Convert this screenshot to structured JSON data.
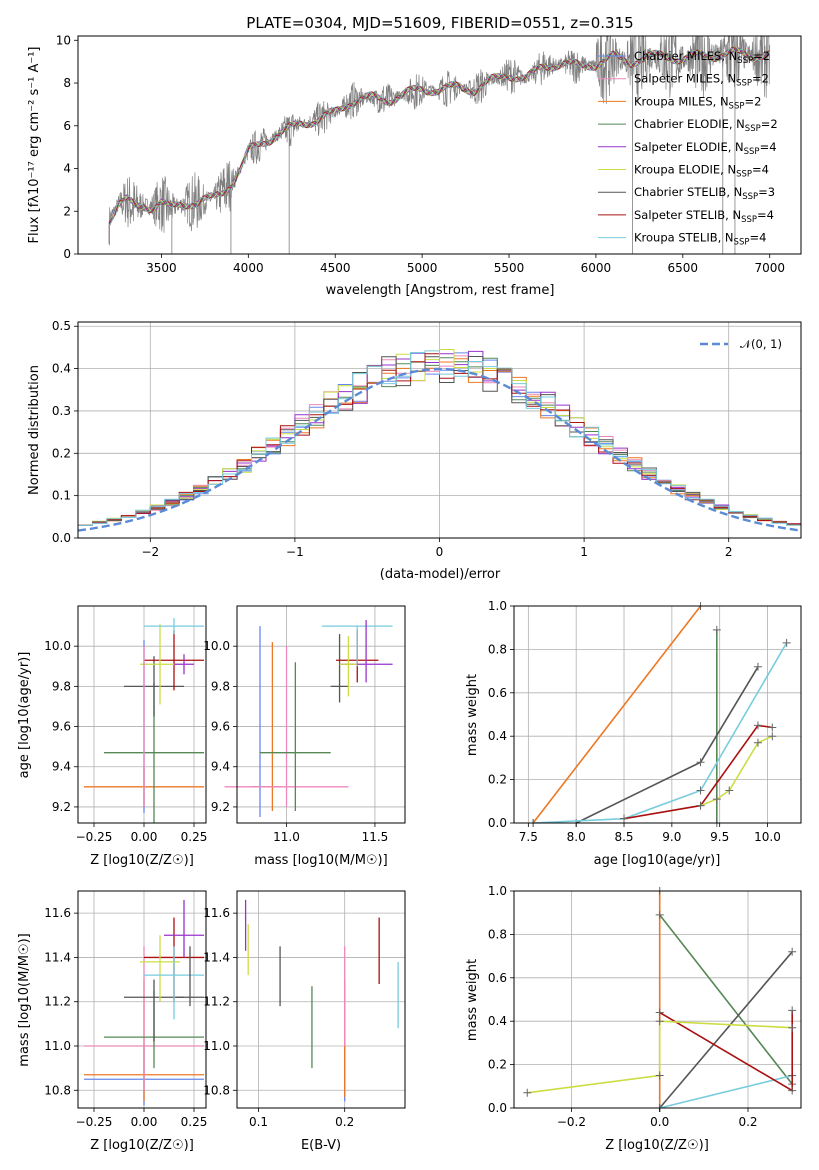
{
  "chart_data": [
    {
      "type": "line",
      "title": "PLATE=0304, MJD=51609, FIBERID=0551, z=0.315",
      "xlabel": "wavelength [Angstrom, rest frame]",
      "ylabel": "Flux [fλ10⁻¹⁷ erg cm⁻² s⁻¹ A⁻¹]",
      "xlim": [
        3020,
        7180
      ],
      "ylim": [
        0,
        10.2
      ],
      "xticks": [
        3500,
        4000,
        4500,
        5000,
        5500,
        6000,
        6500,
        7000
      ],
      "yticks": [
        0,
        2,
        4,
        6,
        8,
        10
      ],
      "data_color": "#7f7f7f",
      "spectrum": {
        "x": [
          3200,
          3250,
          3300,
          3350,
          3400,
          3450,
          3500,
          3550,
          3600,
          3650,
          3700,
          3750,
          3800,
          3850,
          3900,
          3950,
          4000,
          4100,
          4200,
          4300,
          4400,
          4500,
          4600,
          4700,
          4800,
          4900,
          5000,
          5100,
          5200,
          5300,
          5400,
          5500,
          5600,
          5700,
          5800,
          5900,
          6000,
          6100,
          6200,
          6300,
          6400,
          6500,
          6600,
          6700,
          6800,
          6900,
          7000
        ],
        "y": [
          1.6,
          2.3,
          2.5,
          2.2,
          2.3,
          2.2,
          2.4,
          2.1,
          2.3,
          2.4,
          2.4,
          2.5,
          2.6,
          2.9,
          3.3,
          3.9,
          4.8,
          5.3,
          5.7,
          6.1,
          6.3,
          6.6,
          7.2,
          7.3,
          7.2,
          7.5,
          7.7,
          7.7,
          7.8,
          7.7,
          8.1,
          8.4,
          8.2,
          8.8,
          8.9,
          8.8,
          8.9,
          9.2,
          9.0,
          9.2,
          9.3,
          9.1,
          9.3,
          9.3,
          9.4,
          9.3,
          9.3
        ]
      },
      "series": [
        {
          "name": "Chabrier MILES, N_SSP=2",
          "label": "Chabrier MILES, N",
          "sub": "SSP",
          "suffix": "=2",
          "color": "#6688ee"
        },
        {
          "name": "Salpeter MILES, N_SSP=2",
          "label": "Salpeter MILES, N",
          "sub": "SSP",
          "suffix": "=2",
          "color": "#ee88bb"
        },
        {
          "name": "Kroupa MILES, N_SSP=2",
          "label": "Kroupa MILES, N",
          "sub": "SSP",
          "suffix": "=2",
          "color": "#ee7722"
        },
        {
          "name": "Chabrier ELODIE, N_SSP=2",
          "label": "Chabrier ELODIE, N",
          "sub": "SSP",
          "suffix": "=2",
          "color": "#558855"
        },
        {
          "name": "Salpeter ELODIE, N_SSP=4",
          "label": "Salpeter ELODIE, N",
          "sub": "SSP",
          "suffix": "=4",
          "color": "#9933cc"
        },
        {
          "name": "Kroupa ELODIE, N_SSP=4",
          "label": "Kroupa ELODIE, N",
          "sub": "SSP",
          "suffix": "=4",
          "color": "#ccdd44"
        },
        {
          "name": "Chabrier STELIB, N_SSP=3",
          "label": "Chabrier STELIB, N",
          "sub": "SSP",
          "suffix": "=3",
          "color": "#555555"
        },
        {
          "name": "Salpeter STELIB, N_SSP=4",
          "label": "Salpeter STELIB, N",
          "sub": "SSP",
          "suffix": "=4",
          "color": "#aa1111"
        },
        {
          "name": "Kroupa STELIB, N_SSP=4",
          "label": "Kroupa STELIB, N",
          "sub": "SSP",
          "suffix": "=4",
          "color": "#77ccdd"
        }
      ],
      "legend": "top-right"
    },
    {
      "type": "histogram",
      "xlabel": "(data-model)/error",
      "ylabel": "Normed distribution",
      "xlim": [
        -2.5,
        2.5
      ],
      "ylim": [
        0,
        0.51
      ],
      "xticks": [
        -2,
        -1,
        0,
        1,
        2
      ],
      "yticks": [
        0.0,
        0.1,
        0.2,
        0.3,
        0.4,
        0.5
      ],
      "legend_label": "𝒩(0, 1)",
      "gaussian_color": "#5b8bd6",
      "grid": true
    },
    {
      "type": "errorbar",
      "xlabel": "Z [log10(Z/Z☉)]",
      "ylabel": "age [log10(age/yr)]",
      "xlim": [
        -0.33,
        0.31
      ],
      "ylim": [
        9.12,
        10.2
      ],
      "xticks": [
        -0.25,
        0.0,
        0.25
      ],
      "yticks": [
        9.2,
        9.4,
        9.6,
        9.8,
        10.0
      ],
      "points": [
        {
          "x": 0.0,
          "y": 9.3,
          "xerr": 0.3,
          "yerr": 0.1,
          "color": "#ee7722"
        },
        {
          "x": 0.05,
          "y": 9.47,
          "xerr": 0.25,
          "yerr": 0.35,
          "color": "#558855"
        },
        {
          "x": 0.05,
          "y": 9.8,
          "xerr": 0.15,
          "yerr": 0.15,
          "color": "#555555"
        },
        {
          "x": 0.15,
          "y": 9.93,
          "xerr": 0.15,
          "yerr": 0.15,
          "color": "#aa1111"
        },
        {
          "x": 0.08,
          "y": 9.91,
          "xerr": 0.1,
          "yerr": 0.2,
          "color": "#ccdd44"
        },
        {
          "x": 0.15,
          "y": 10.1,
          "xerr": 0.15,
          "yerr": 0.04,
          "color": "#77ccdd"
        },
        {
          "x": 0.2,
          "y": 9.91,
          "xerr": 0.05,
          "yerr": 0.05,
          "color": "#9933cc"
        }
      ]
    },
    {
      "type": "errorbar",
      "xlabel": "mass [log10(M/M☉)]",
      "xlim": [
        10.72,
        11.67
      ],
      "ylim": [
        9.12,
        10.2
      ],
      "xticks": [
        11.0,
        11.5
      ],
      "yticks": [
        9.2,
        9.4,
        9.6,
        9.8,
        10.0
      ]
    },
    {
      "type": "line",
      "xlabel": "age  [log10(age/yr)]",
      "ylabel": "mass weight",
      "xlim": [
        7.35,
        10.35
      ],
      "ylim": [
        0,
        1.0
      ],
      "xticks": [
        7.5,
        8.0,
        8.5,
        9.0,
        9.5,
        10.0
      ],
      "yticks": [
        0.0,
        0.2,
        0.4,
        0.6,
        0.8,
        1.0
      ],
      "series": [
        {
          "name": "Kroupa MILES",
          "color": "#ee7722",
          "x": [
            7.55,
            9.3
          ],
          "y": [
            0.0,
            1.0
          ]
        },
        {
          "name": "Chabrier ELODIE",
          "color": "#558855",
          "x": [
            9.47,
            9.47
          ],
          "y": [
            0.0,
            0.89
          ]
        },
        {
          "name": "Chabrier STELIB",
          "color": "#555555",
          "x": [
            8.0,
            9.3,
            9.9
          ],
          "y": [
            0.0,
            0.28,
            0.72
          ]
        },
        {
          "name": "Kroupa STELIB",
          "color": "#77ccdd",
          "x": [
            7.55,
            8.5,
            9.3,
            10.2
          ],
          "y": [
            0.0,
            0.02,
            0.15,
            0.83
          ]
        },
        {
          "name": "Salpeter STELIB",
          "color": "#aa1111",
          "x": [
            8.5,
            9.3,
            9.9,
            10.05
          ],
          "y": [
            0.02,
            0.08,
            0.45,
            0.44
          ]
        },
        {
          "name": "Kroupa ELODIE",
          "color": "#ccdd44",
          "x": [
            9.3,
            9.47,
            9.6,
            9.9,
            10.05
          ],
          "y": [
            0.08,
            0.11,
            0.15,
            0.37,
            0.4
          ]
        }
      ]
    },
    {
      "type": "errorbar",
      "xlabel": "Z [log10(Z/Z☉)]",
      "ylabel": "mass [log10(M/M☉)]",
      "xlim": [
        -0.33,
        0.31
      ],
      "ylim": [
        10.72,
        11.7
      ],
      "xticks": [
        -0.25,
        0.0,
        0.25
      ],
      "yticks": [
        10.8,
        11.0,
        11.2,
        11.4,
        11.6
      ]
    },
    {
      "type": "errorbar",
      "xlabel": "E(B-V)",
      "xlim": [
        0.075,
        0.27
      ],
      "ylim": [
        10.72,
        11.7
      ],
      "xticks": [
        0.1,
        0.2
      ],
      "yticks": [
        10.8,
        11.0,
        11.2,
        11.4,
        11.6
      ]
    },
    {
      "type": "line",
      "xlabel": "Z [log10(Z/Z☉)]",
      "ylabel": "mass weight",
      "xlim": [
        -0.33,
        0.32
      ],
      "ylim": [
        0,
        1.0
      ],
      "xticks": [
        -0.2,
        0.0,
        0.2
      ],
      "yticks": [
        0.0,
        0.2,
        0.4,
        0.6,
        0.8,
        1.0
      ],
      "series": [
        {
          "name": "Kroupa MILES",
          "color": "#ee7722",
          "x": [
            0.0,
            0.0
          ],
          "y": [
            0.0,
            1.0
          ]
        },
        {
          "name": "Chabrier ELODIE",
          "color": "#558855",
          "x": [
            0.0,
            0.3
          ],
          "y": [
            0.89,
            0.11
          ]
        },
        {
          "name": "Chabrier STELIB",
          "color": "#555555",
          "x": [
            0.0,
            0.3
          ],
          "y": [
            0.0,
            0.72
          ]
        },
        {
          "name": "Kroupa STELIB",
          "color": "#77ccdd",
          "x": [
            0.0,
            0.3
          ],
          "y": [
            0.0,
            0.15
          ]
        },
        {
          "name": "Salpeter STELIB",
          "color": "#aa1111",
          "x": [
            0.0,
            0.3,
            0.3
          ],
          "y": [
            0.44,
            0.08,
            0.45
          ]
        },
        {
          "name": "Kroupa ELODIE",
          "color": "#ccdd44",
          "x": [
            -0.3,
            0.0,
            0.0,
            0.3
          ],
          "y": [
            0.07,
            0.15,
            0.4,
            0.37
          ]
        }
      ]
    }
  ]
}
